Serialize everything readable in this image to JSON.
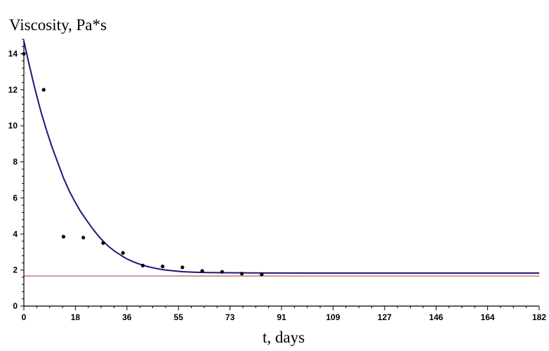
{
  "chart_data": {
    "type": "scatter",
    "title": "",
    "xlabel": "t, days",
    "ylabel": "Viscosity, Pa*s",
    "xlim": [
      0,
      182
    ],
    "ylim": [
      0,
      14.8
    ],
    "x_ticks": [
      0,
      18,
      36,
      55,
      73,
      91,
      109,
      127,
      146,
      164,
      182
    ],
    "y_ticks": [
      0,
      2,
      4,
      6,
      8,
      10,
      12,
      14
    ],
    "grid": false,
    "legend": "none",
    "series": [
      {
        "kind": "scatter",
        "color": "#000000",
        "points": [
          {
            "x": 0,
            "y": 14.0
          },
          {
            "x": 7,
            "y": 12.0
          },
          {
            "x": 14,
            "y": 3.85
          },
          {
            "x": 21,
            "y": 3.8
          },
          {
            "x": 28,
            "y": 3.5
          },
          {
            "x": 35,
            "y": 2.95
          },
          {
            "x": 42,
            "y": 2.25
          },
          {
            "x": 49,
            "y": 2.2
          },
          {
            "x": 56,
            "y": 2.15
          },
          {
            "x": 63,
            "y": 1.95
          },
          {
            "x": 70,
            "y": 1.9
          },
          {
            "x": 77,
            "y": 1.8
          },
          {
            "x": 84,
            "y": 1.75
          }
        ]
      },
      {
        "kind": "line",
        "color": "#1a1a7a",
        "points": [
          {
            "x": 0,
            "y": 14.7
          },
          {
            "x": 2,
            "y": 13.3
          },
          {
            "x": 4,
            "y": 12.0
          },
          {
            "x": 6,
            "y": 10.8
          },
          {
            "x": 8,
            "y": 9.75
          },
          {
            "x": 10,
            "y": 8.8
          },
          {
            "x": 12,
            "y": 7.95
          },
          {
            "x": 14,
            "y": 7.1
          },
          {
            "x": 16,
            "y": 6.4
          },
          {
            "x": 18,
            "y": 5.8
          },
          {
            "x": 20,
            "y": 5.25
          },
          {
            "x": 22,
            "y": 4.8
          },
          {
            "x": 24,
            "y": 4.35
          },
          {
            "x": 26,
            "y": 3.95
          },
          {
            "x": 28,
            "y": 3.6
          },
          {
            "x": 30,
            "y": 3.3
          },
          {
            "x": 32,
            "y": 3.05
          },
          {
            "x": 34,
            "y": 2.85
          },
          {
            "x": 36,
            "y": 2.65
          },
          {
            "x": 38,
            "y": 2.5
          },
          {
            "x": 40,
            "y": 2.37
          },
          {
            "x": 42,
            "y": 2.27
          },
          {
            "x": 44,
            "y": 2.18
          },
          {
            "x": 46,
            "y": 2.11
          },
          {
            "x": 48,
            "y": 2.05
          },
          {
            "x": 50,
            "y": 2.0
          },
          {
            "x": 53,
            "y": 1.95
          },
          {
            "x": 56,
            "y": 1.91
          },
          {
            "x": 60,
            "y": 1.88
          },
          {
            "x": 65,
            "y": 1.86
          },
          {
            "x": 70,
            "y": 1.85
          },
          {
            "x": 80,
            "y": 1.84
          },
          {
            "x": 100,
            "y": 1.83
          },
          {
            "x": 140,
            "y": 1.83
          },
          {
            "x": 182,
            "y": 1.83
          }
        ]
      },
      {
        "kind": "hline",
        "color": "#b03030",
        "y": 1.67
      }
    ]
  }
}
